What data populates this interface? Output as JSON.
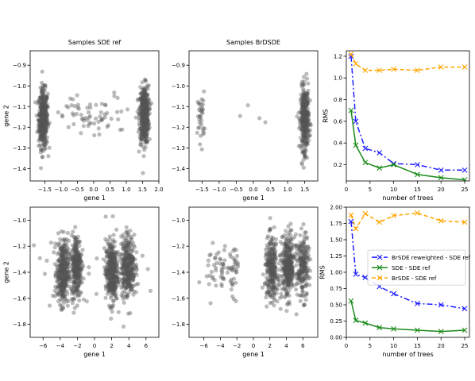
{
  "chart_data": [
    {
      "type": "scatter",
      "title": "Samples SDE ref",
      "xlabel": "gene 1",
      "ylabel": "gene 2",
      "xlim": [
        -1.95,
        2.0
      ],
      "ylim": [
        -1.46,
        -0.83
      ],
      "xticks": [
        -1.5,
        -1.0,
        -0.5,
        0.0,
        0.5,
        1.0,
        1.5,
        2.0
      ],
      "xtick_labels": [
        "−1.5",
        "−1.0",
        "−0.5",
        "0.0",
        "0.5",
        "1.0",
        "1.5",
        "2.0"
      ],
      "yticks": [
        -1.4,
        -1.3,
        -1.2,
        -1.1,
        -1.0,
        -0.9
      ],
      "ytick_labels": [
        "−1.4",
        "−1.3",
        "−1.2",
        "−1.1",
        "−1.0",
        "−0.9"
      ],
      "point_color": "#555555",
      "point_opacity": 0.4,
      "grid": false,
      "clusters": [
        {
          "center": [
            -1.55,
            -1.16
          ],
          "spread": [
            0.07,
            0.07
          ],
          "n": 420
        },
        {
          "center": [
            1.55,
            -1.14
          ],
          "spread": [
            0.07,
            0.07
          ],
          "n": 420
        },
        {
          "center": [
            0.0,
            -1.15
          ],
          "spread": [
            0.75,
            0.055
          ],
          "n": 70
        }
      ]
    },
    {
      "type": "scatter",
      "title": "Samples BrDSDE",
      "xlabel": "gene 1",
      "ylabel": "",
      "xlim": [
        -1.88,
        1.88
      ],
      "ylim": [
        -1.46,
        -0.83
      ],
      "xticks": [
        -1.5,
        -1.0,
        -0.5,
        0.0,
        0.5,
        1.0,
        1.5
      ],
      "xtick_labels": [
        "−1.5",
        "−1.0",
        "−0.5",
        "0.0",
        "0.5",
        "1.0",
        "1.5"
      ],
      "yticks": [
        -1.4,
        -1.3,
        -1.2,
        -1.1,
        -1.0,
        -0.9
      ],
      "ytick_labels": [
        "−1.4",
        "−1.3",
        "−1.2",
        "−1.1",
        "−1.0",
        "−0.9"
      ],
      "point_color": "#555555",
      "point_opacity": 0.4,
      "grid": false,
      "clusters": [
        {
          "center": [
            -1.53,
            -1.15
          ],
          "spread": [
            0.05,
            0.06
          ],
          "n": 35
        },
        {
          "center": [
            1.5,
            -1.16
          ],
          "spread": [
            0.06,
            0.075
          ],
          "n": 380
        },
        {
          "center": [
            -0.1,
            -1.14
          ],
          "spread": [
            0.25,
            0.05
          ],
          "n": 4
        }
      ]
    },
    {
      "type": "line",
      "title": "",
      "xlabel": "number of trees",
      "ylabel": "RMS",
      "xlim": [
        0,
        26
      ],
      "ylim": [
        0.05,
        1.25
      ],
      "xticks": [
        0,
        5,
        10,
        15,
        20,
        25
      ],
      "xtick_labels": [
        "0",
        "5",
        "10",
        "15",
        "20",
        "25"
      ],
      "yticks": [
        0.2,
        0.4,
        0.6,
        0.8,
        1.0,
        1.2
      ],
      "ytick_labels": [
        "0.2",
        "0.4",
        "0.6",
        "0.8",
        "1.0",
        "1.2"
      ],
      "grid": false,
      "x": [
        1,
        2,
        4,
        7,
        10,
        15,
        20,
        25
      ],
      "series": [
        {
          "name": "BrSDE reweighted - SDE ref",
          "color": "#1f1fff",
          "dash": "7,3,2,3",
          "values": [
            1.2,
            0.6,
            0.35,
            0.31,
            0.21,
            0.2,
            0.15,
            0.15
          ]
        },
        {
          "name": "SDE - SDE ref",
          "color": "#1a8a1a",
          "dash": "",
          "values": [
            0.7,
            0.38,
            0.22,
            0.17,
            0.2,
            0.11,
            0.08,
            0.06
          ]
        },
        {
          "name": "BrSDE - SDE ref",
          "color": "#ffa500",
          "dash": "5,3",
          "values": [
            1.22,
            1.13,
            1.07,
            1.07,
            1.08,
            1.07,
            1.1,
            1.1
          ]
        }
      ]
    },
    {
      "type": "scatter",
      "title": "",
      "xlabel": "gene 1",
      "ylabel": "gene 2",
      "xlim": [
        -7.5,
        7.5
      ],
      "ylim": [
        -1.9,
        -0.9
      ],
      "xticks": [
        -6,
        -4,
        -2,
        0,
        2,
        4,
        6
      ],
      "xtick_labels": [
        "−6",
        "−4",
        "−2",
        "0",
        "2",
        "4",
        "6"
      ],
      "yticks": [
        -1.8,
        -1.6,
        -1.4,
        -1.2,
        -1.0
      ],
      "ytick_labels": [
        "−1.8",
        "−1.6",
        "−1.4",
        "−1.2",
        "−1.0"
      ],
      "point_color": "#555555",
      "point_opacity": 0.4,
      "grid": false,
      "clusters": [
        {
          "center": [
            -3.7,
            -1.4
          ],
          "spread": [
            0.35,
            0.12
          ],
          "n": 360
        },
        {
          "center": [
            -2.1,
            -1.35
          ],
          "spread": [
            0.3,
            0.12
          ],
          "n": 300
        },
        {
          "center": [
            2.0,
            -1.4
          ],
          "spread": [
            0.35,
            0.12
          ],
          "n": 360
        },
        {
          "center": [
            3.9,
            -1.35
          ],
          "spread": [
            0.4,
            0.12
          ],
          "n": 330
        },
        {
          "center": [
            0.0,
            -1.38
          ],
          "spread": [
            5.5,
            0.14
          ],
          "n": 40
        }
      ]
    },
    {
      "type": "scatter",
      "title": "",
      "xlabel": "gene 1",
      "ylabel": "",
      "xlim": [
        -7.8,
        7.8
      ],
      "ylim": [
        -1.9,
        -0.9
      ],
      "xticks": [
        -6,
        -4,
        -2,
        0,
        2,
        4,
        6
      ],
      "xtick_labels": [
        "−6",
        "−4",
        "−2",
        "0",
        "2",
        "4",
        "6"
      ],
      "yticks": [
        -1.8,
        -1.6,
        -1.4,
        -1.2,
        -1.0
      ],
      "ytick_labels": [
        "−1.8",
        "−1.6",
        "−1.4",
        "−1.2",
        "−1.0"
      ],
      "point_color": "#555555",
      "point_opacity": 0.4,
      "grid": false,
      "clusters": [
        {
          "center": [
            -4.0,
            -1.38
          ],
          "spread": [
            0.9,
            0.11
          ],
          "n": 55
        },
        {
          "center": [
            -2.2,
            -1.35
          ],
          "spread": [
            0.25,
            0.1
          ],
          "n": 25
        },
        {
          "center": [
            2.2,
            -1.38
          ],
          "spread": [
            0.4,
            0.12
          ],
          "n": 260
        },
        {
          "center": [
            4.2,
            -1.36
          ],
          "spread": [
            0.4,
            0.12
          ],
          "n": 330
        },
        {
          "center": [
            6.0,
            -1.36
          ],
          "spread": [
            0.35,
            0.12
          ],
          "n": 200
        }
      ]
    },
    {
      "type": "line",
      "title": "",
      "xlabel": "number of trees",
      "ylabel": "RMS",
      "xlim": [
        0,
        26
      ],
      "ylim": [
        0.0,
        2.0
      ],
      "xticks": [
        0,
        5,
        10,
        15,
        20,
        25
      ],
      "xtick_labels": [
        "0",
        "5",
        "10",
        "15",
        "20",
        "25"
      ],
      "yticks": [
        0.0,
        0.25,
        0.5,
        0.75,
        1.0,
        1.25,
        1.5,
        1.75,
        2.0
      ],
      "ytick_labels": [
        "0.00",
        "0.25",
        "0.50",
        "0.75",
        "1.00",
        "1.25",
        "1.50",
        "1.75",
        "2.00"
      ],
      "grid": false,
      "legend": "center-right",
      "x": [
        1,
        2,
        4,
        7,
        10,
        15,
        20,
        25
      ],
      "series": [
        {
          "name": "BrSDE reweighted - SDE ref",
          "color": "#1f1fff",
          "dash": "7,3,2,3",
          "values": [
            1.78,
            0.97,
            0.92,
            0.78,
            0.67,
            0.52,
            0.5,
            0.44
          ]
        },
        {
          "name": "SDE - SDE ref",
          "color": "#1a8a1a",
          "dash": "",
          "values": [
            0.56,
            0.26,
            0.22,
            0.15,
            0.13,
            0.11,
            0.09,
            0.11
          ]
        },
        {
          "name": "BrSDE - SDE ref",
          "color": "#ffa500",
          "dash": "5,3",
          "values": [
            1.88,
            1.67,
            1.9,
            1.77,
            1.87,
            1.91,
            1.79,
            1.77
          ]
        }
      ]
    }
  ]
}
